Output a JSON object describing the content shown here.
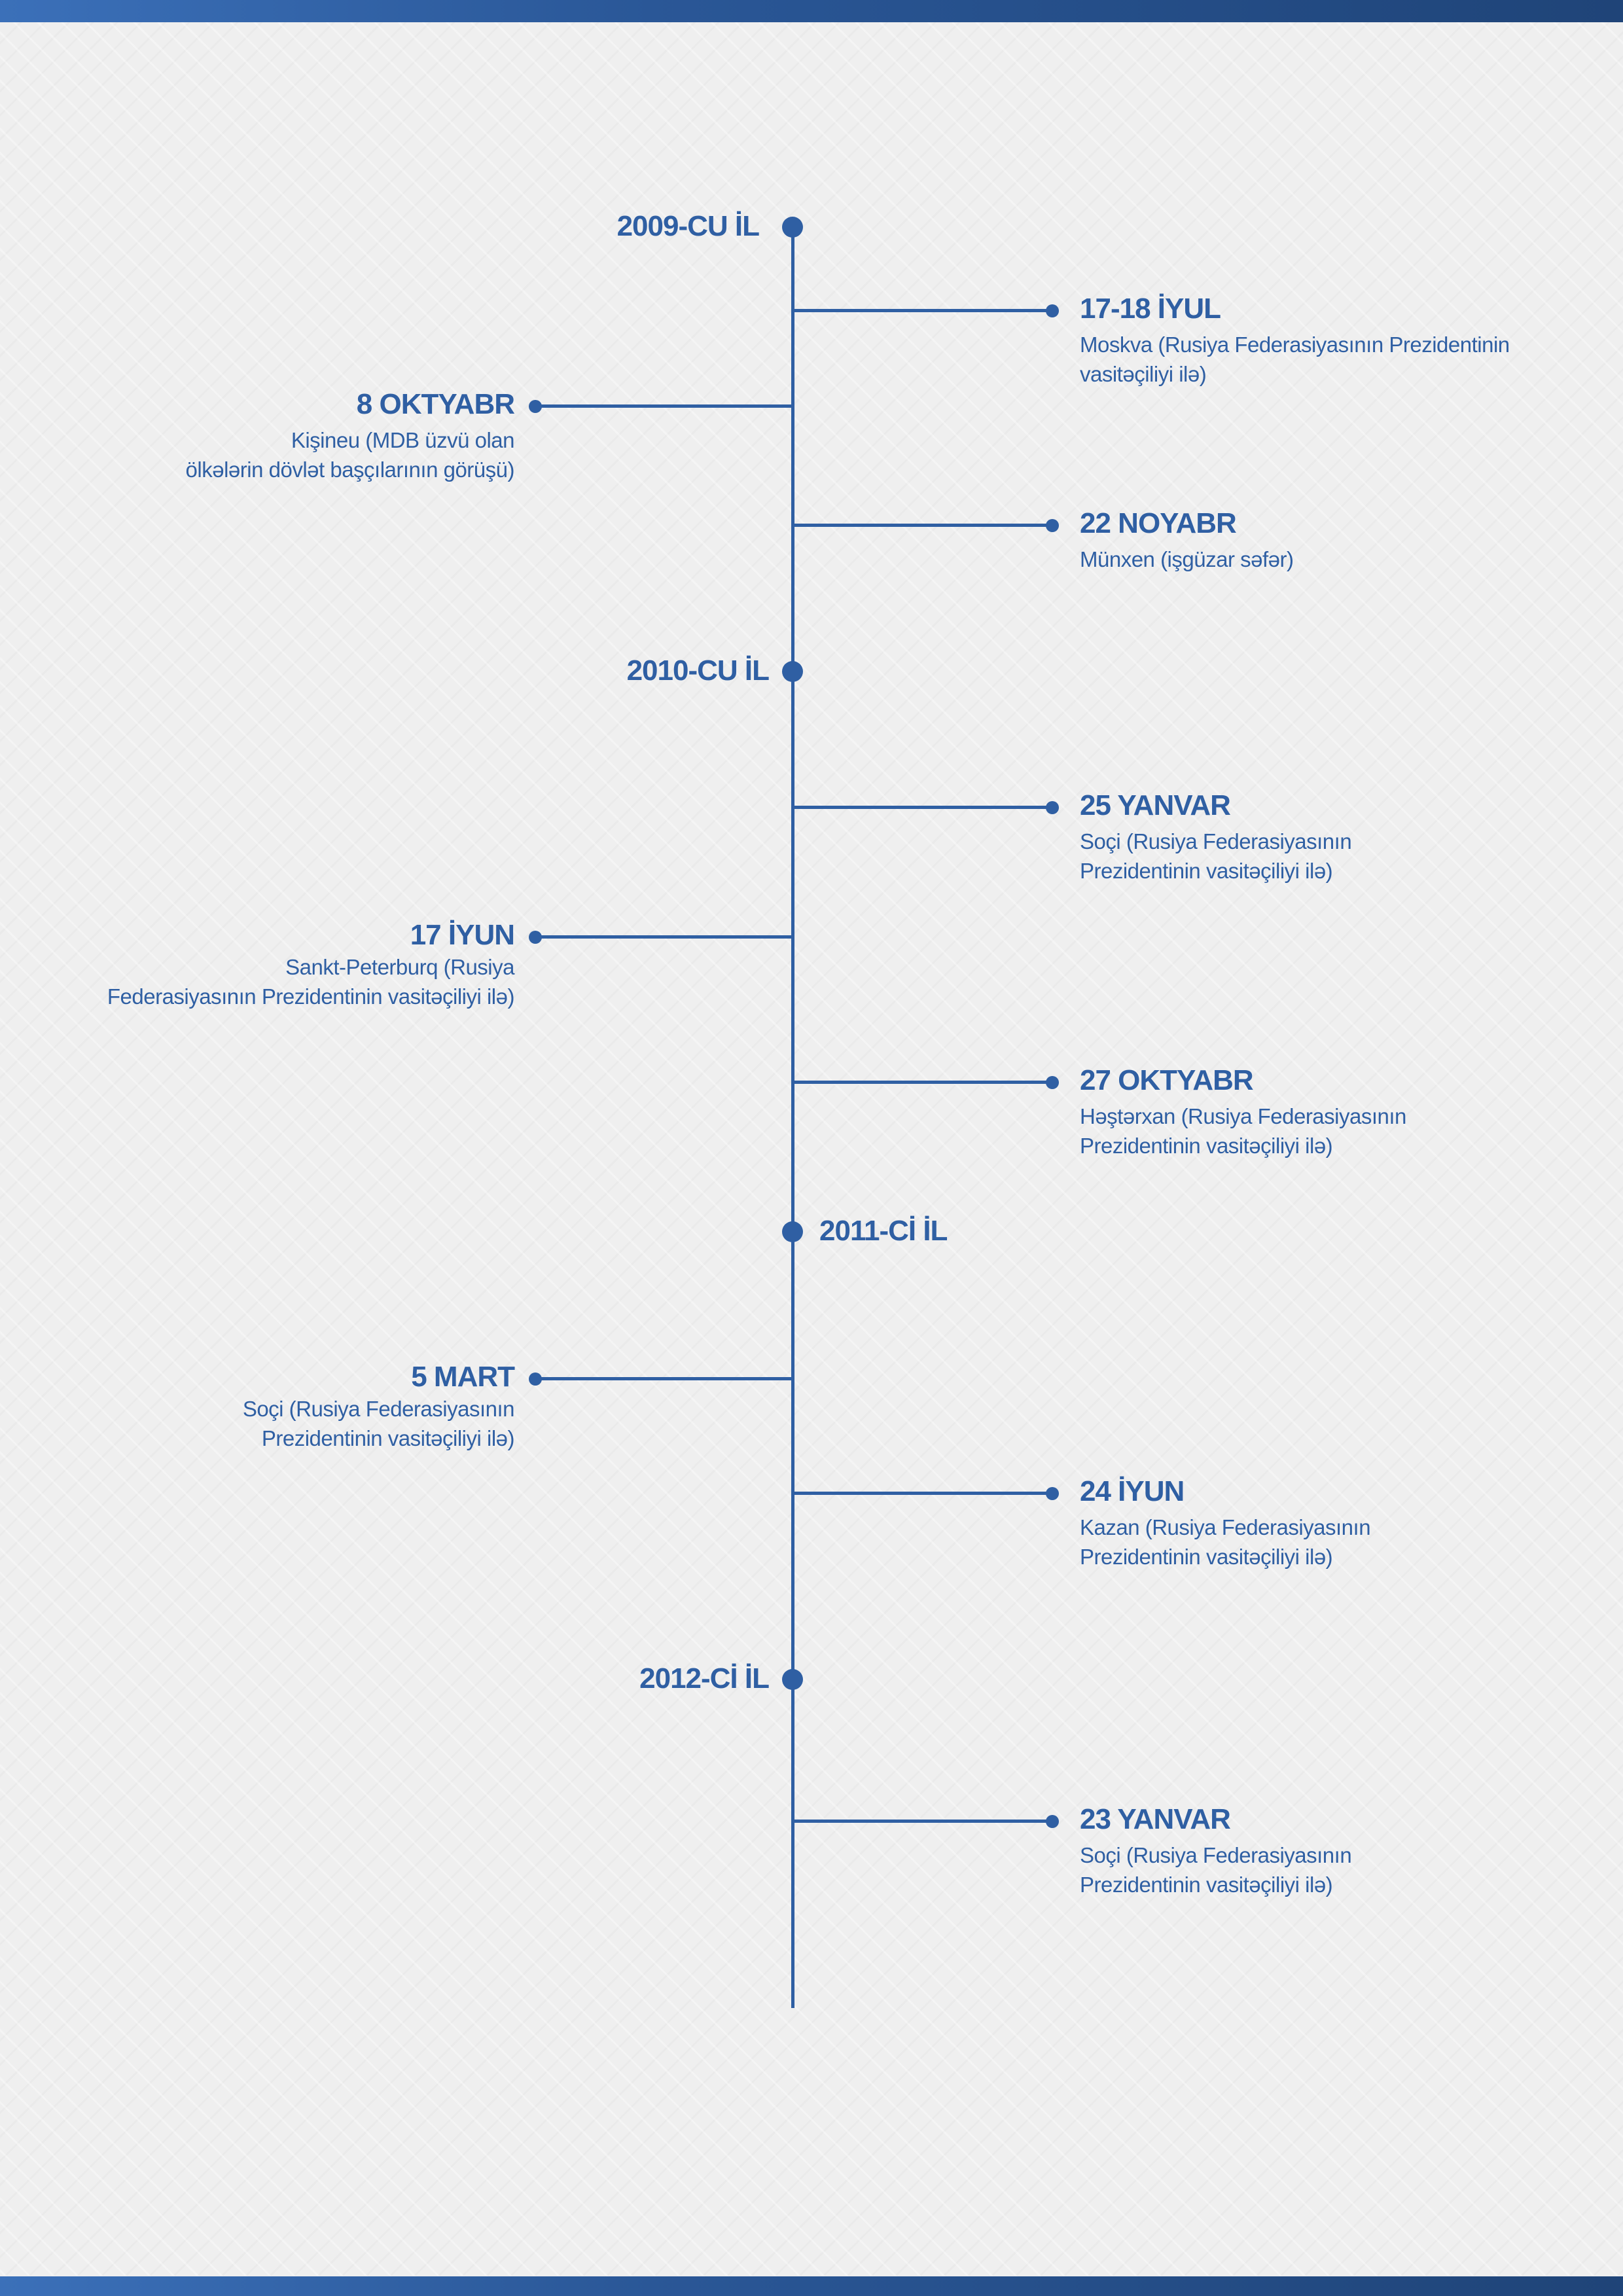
{
  "colors": {
    "accent": "#2f5fa3",
    "background": "#efefef",
    "band": "#2a5797"
  },
  "timeline": {
    "years": [
      {
        "label": "2009-CU İL"
      },
      {
        "label": "2010-CU İL"
      },
      {
        "label": "2011-Cİ İL"
      },
      {
        "label": "2012-Cİ İL"
      }
    ],
    "events": [
      {
        "side": "right",
        "date": "17-18 İYUL",
        "desc_lines": [
          "Moskva (Rusiya Federasiyasının Prezidentinin",
          "vasitəçiliyi ilə)"
        ]
      },
      {
        "side": "left",
        "date": "8 OKTYABR",
        "desc_lines": [
          "Kişineu (MDB üzvü olan",
          "ölkələrin dövlət başçılarının görüşü)"
        ]
      },
      {
        "side": "right",
        "date": "22 NOYABR",
        "desc_lines": [
          "Münxen (işgüzar səfər)"
        ]
      },
      {
        "side": "right",
        "date": "25 YANVAR",
        "desc_lines": [
          "Soçi (Rusiya Federasiyasının",
          "Prezidentinin vasitəçiliyi ilə)"
        ]
      },
      {
        "side": "left",
        "date": "17 İYUN",
        "desc_lines": [
          "Sankt-Peterburq (Rusiya",
          "Federasiyasının Prezidentinin vasitəçiliyi ilə)"
        ]
      },
      {
        "side": "right",
        "date": "27 OKTYABR",
        "desc_lines": [
          "Həştərxan (Rusiya Federasiyasının",
          "Prezidentinin vasitəçiliyi ilə)"
        ]
      },
      {
        "side": "left",
        "date": "5 MART",
        "desc_lines": [
          "Soçi (Rusiya Federasiyasının",
          "Prezidentinin vasitəçiliyi ilə)"
        ]
      },
      {
        "side": "right",
        "date": "24 İYUN",
        "desc_lines": [
          "Kazan (Rusiya Federasiyasının",
          "Prezidentinin vasitəçiliyi ilə)"
        ]
      },
      {
        "side": "right",
        "date": "23 YANVAR",
        "desc_lines": [
          "Soçi (Rusiya Federasiyasının",
          "Prezidentinin vasitəçiliyi ilə)"
        ]
      }
    ]
  }
}
